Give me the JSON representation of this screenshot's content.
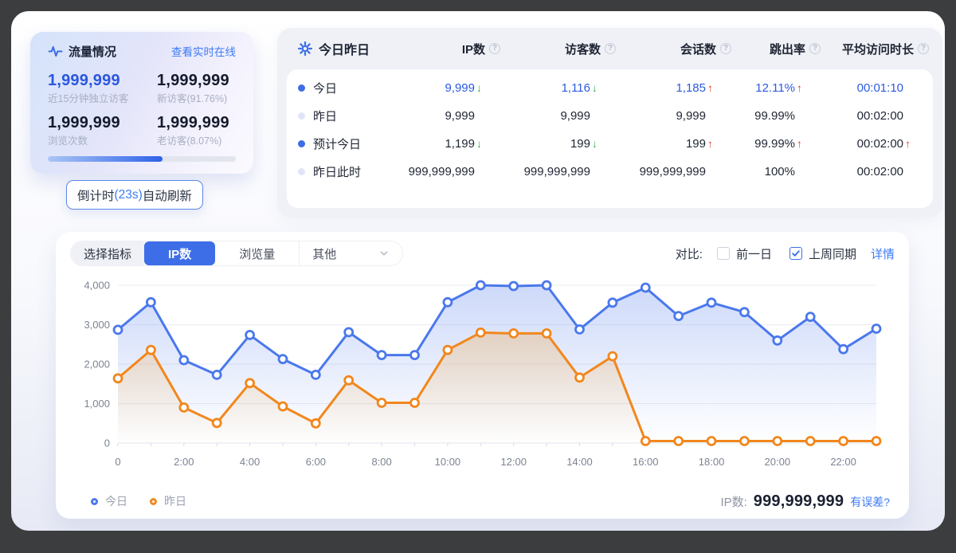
{
  "colors": {
    "accent_blue": "#3d6ee8",
    "link_blue": "#3e7bf5",
    "value_blue": "#2b5ae0",
    "chart_blue": "#4a78ec",
    "chart_orange": "#f2871c",
    "trend_up_red": "#e8362d",
    "trend_down_green": "#27ae4f"
  },
  "traffic_card": {
    "title": "流量情况",
    "link": "查看实时在线",
    "stats": [
      {
        "value": "1,999,999",
        "label": "近15分钟独立访客",
        "emphasis": true
      },
      {
        "value": "1,999,999",
        "label": "新访客(91.76%)",
        "emphasis": false
      },
      {
        "value": "1,999,999",
        "label": "浏览次数",
        "emphasis": false
      },
      {
        "value": "1,999,999",
        "label": "老访客(8.07%)",
        "emphasis": false
      }
    ],
    "progress_percent": 61,
    "tooltip": {
      "prefix": "倒计时",
      "countdown": "(23s)",
      "suffix": "自动刷新"
    }
  },
  "summary_table": {
    "title": "今日昨日",
    "columns": [
      "IP数",
      "访客数",
      "会话数",
      "跳出率",
      "平均访问时长"
    ],
    "rows": [
      {
        "label": "今日",
        "active": true,
        "highlight": true,
        "cells": [
          {
            "value": "9,999",
            "trend": "down"
          },
          {
            "value": "1,116",
            "trend": "down"
          },
          {
            "value": "1,185",
            "trend": "up"
          },
          {
            "value": "12.11%",
            "trend": "up"
          },
          {
            "value": "00:01:10",
            "trend": null
          }
        ]
      },
      {
        "label": "昨日",
        "active": false,
        "highlight": false,
        "cells": [
          {
            "value": "9,999",
            "trend": null
          },
          {
            "value": "9,999",
            "trend": null
          },
          {
            "value": "9,999",
            "trend": null
          },
          {
            "value": "99.99%",
            "trend": null
          },
          {
            "value": "00:02:00",
            "trend": null
          }
        ]
      },
      {
        "label": "预计今日",
        "active": true,
        "highlight": false,
        "cells": [
          {
            "value": "1,199",
            "trend": "down"
          },
          {
            "value": "199",
            "trend": "down"
          },
          {
            "value": "199",
            "trend": "up"
          },
          {
            "value": "99.99%",
            "trend": "up"
          },
          {
            "value": "00:02:00",
            "trend": "up"
          }
        ]
      },
      {
        "label": "昨日此时",
        "active": false,
        "highlight": false,
        "cells": [
          {
            "value": "999,999,999",
            "trend": null
          },
          {
            "value": "999,999,999",
            "trend": null
          },
          {
            "value": "999,999,999",
            "trend": null
          },
          {
            "value": "100%",
            "trend": null
          },
          {
            "value": "00:02:00",
            "trend": null
          }
        ]
      }
    ]
  },
  "chart_panel": {
    "selector_label": "选择指标",
    "tabs": [
      {
        "label": "IP数",
        "selected": true,
        "dropdown": false
      },
      {
        "label": "浏览量",
        "selected": false,
        "dropdown": false
      },
      {
        "label": "其他",
        "selected": false,
        "dropdown": true
      }
    ],
    "compare_label": "对比:",
    "checkboxes": [
      {
        "label": "前一日",
        "checked": false
      },
      {
        "label": "上周同期",
        "checked": true
      }
    ],
    "detail_link": "详情",
    "footer": {
      "metric_label": "IP数:",
      "metric_value": "999,999,999",
      "error_link": "有误差?"
    }
  },
  "chart_data": {
    "type": "line",
    "x": [
      0,
      1,
      2,
      3,
      4,
      5,
      6,
      7,
      8,
      9,
      10,
      11,
      12,
      13,
      14,
      15,
      16,
      17,
      18,
      19,
      20,
      21,
      22,
      23
    ],
    "x_tick_hours": [
      0,
      2,
      4,
      6,
      8,
      10,
      12,
      14,
      16,
      18,
      20,
      22
    ],
    "x_tick_labels": [
      "0",
      "2:00",
      "4:00",
      "6:00",
      "8:00",
      "10:00",
      "12:00",
      "14:00",
      "16:00",
      "18:00",
      "20:00",
      "22:00"
    ],
    "ylim": [
      0,
      4000
    ],
    "yticks": [
      0,
      1000,
      2000,
      3000,
      4000
    ],
    "ytick_labels": [
      "0",
      "1,000",
      "2,000",
      "3,000",
      "4,000"
    ],
    "grid": true,
    "legend_position": "bottom-left",
    "series": [
      {
        "name": "今日",
        "color": "#4a78ec",
        "fill": "#5a82ee",
        "values": [
          2870,
          3570,
          2100,
          1730,
          2740,
          2130,
          1730,
          2810,
          2230,
          2230,
          3570,
          4000,
          3980,
          4000,
          2880,
          3560,
          3940,
          3220,
          3560,
          3320,
          2600,
          3200,
          2380,
          2900
        ]
      },
      {
        "name": "昨日",
        "color": "#f2871c",
        "fill": "#f2a43c",
        "values": [
          1640,
          2360,
          900,
          510,
          1520,
          930,
          500,
          1590,
          1020,
          1020,
          2360,
          2800,
          2780,
          2780,
          1660,
          2200,
          50,
          50,
          50,
          50,
          50,
          50,
          50,
          50
        ]
      }
    ]
  }
}
